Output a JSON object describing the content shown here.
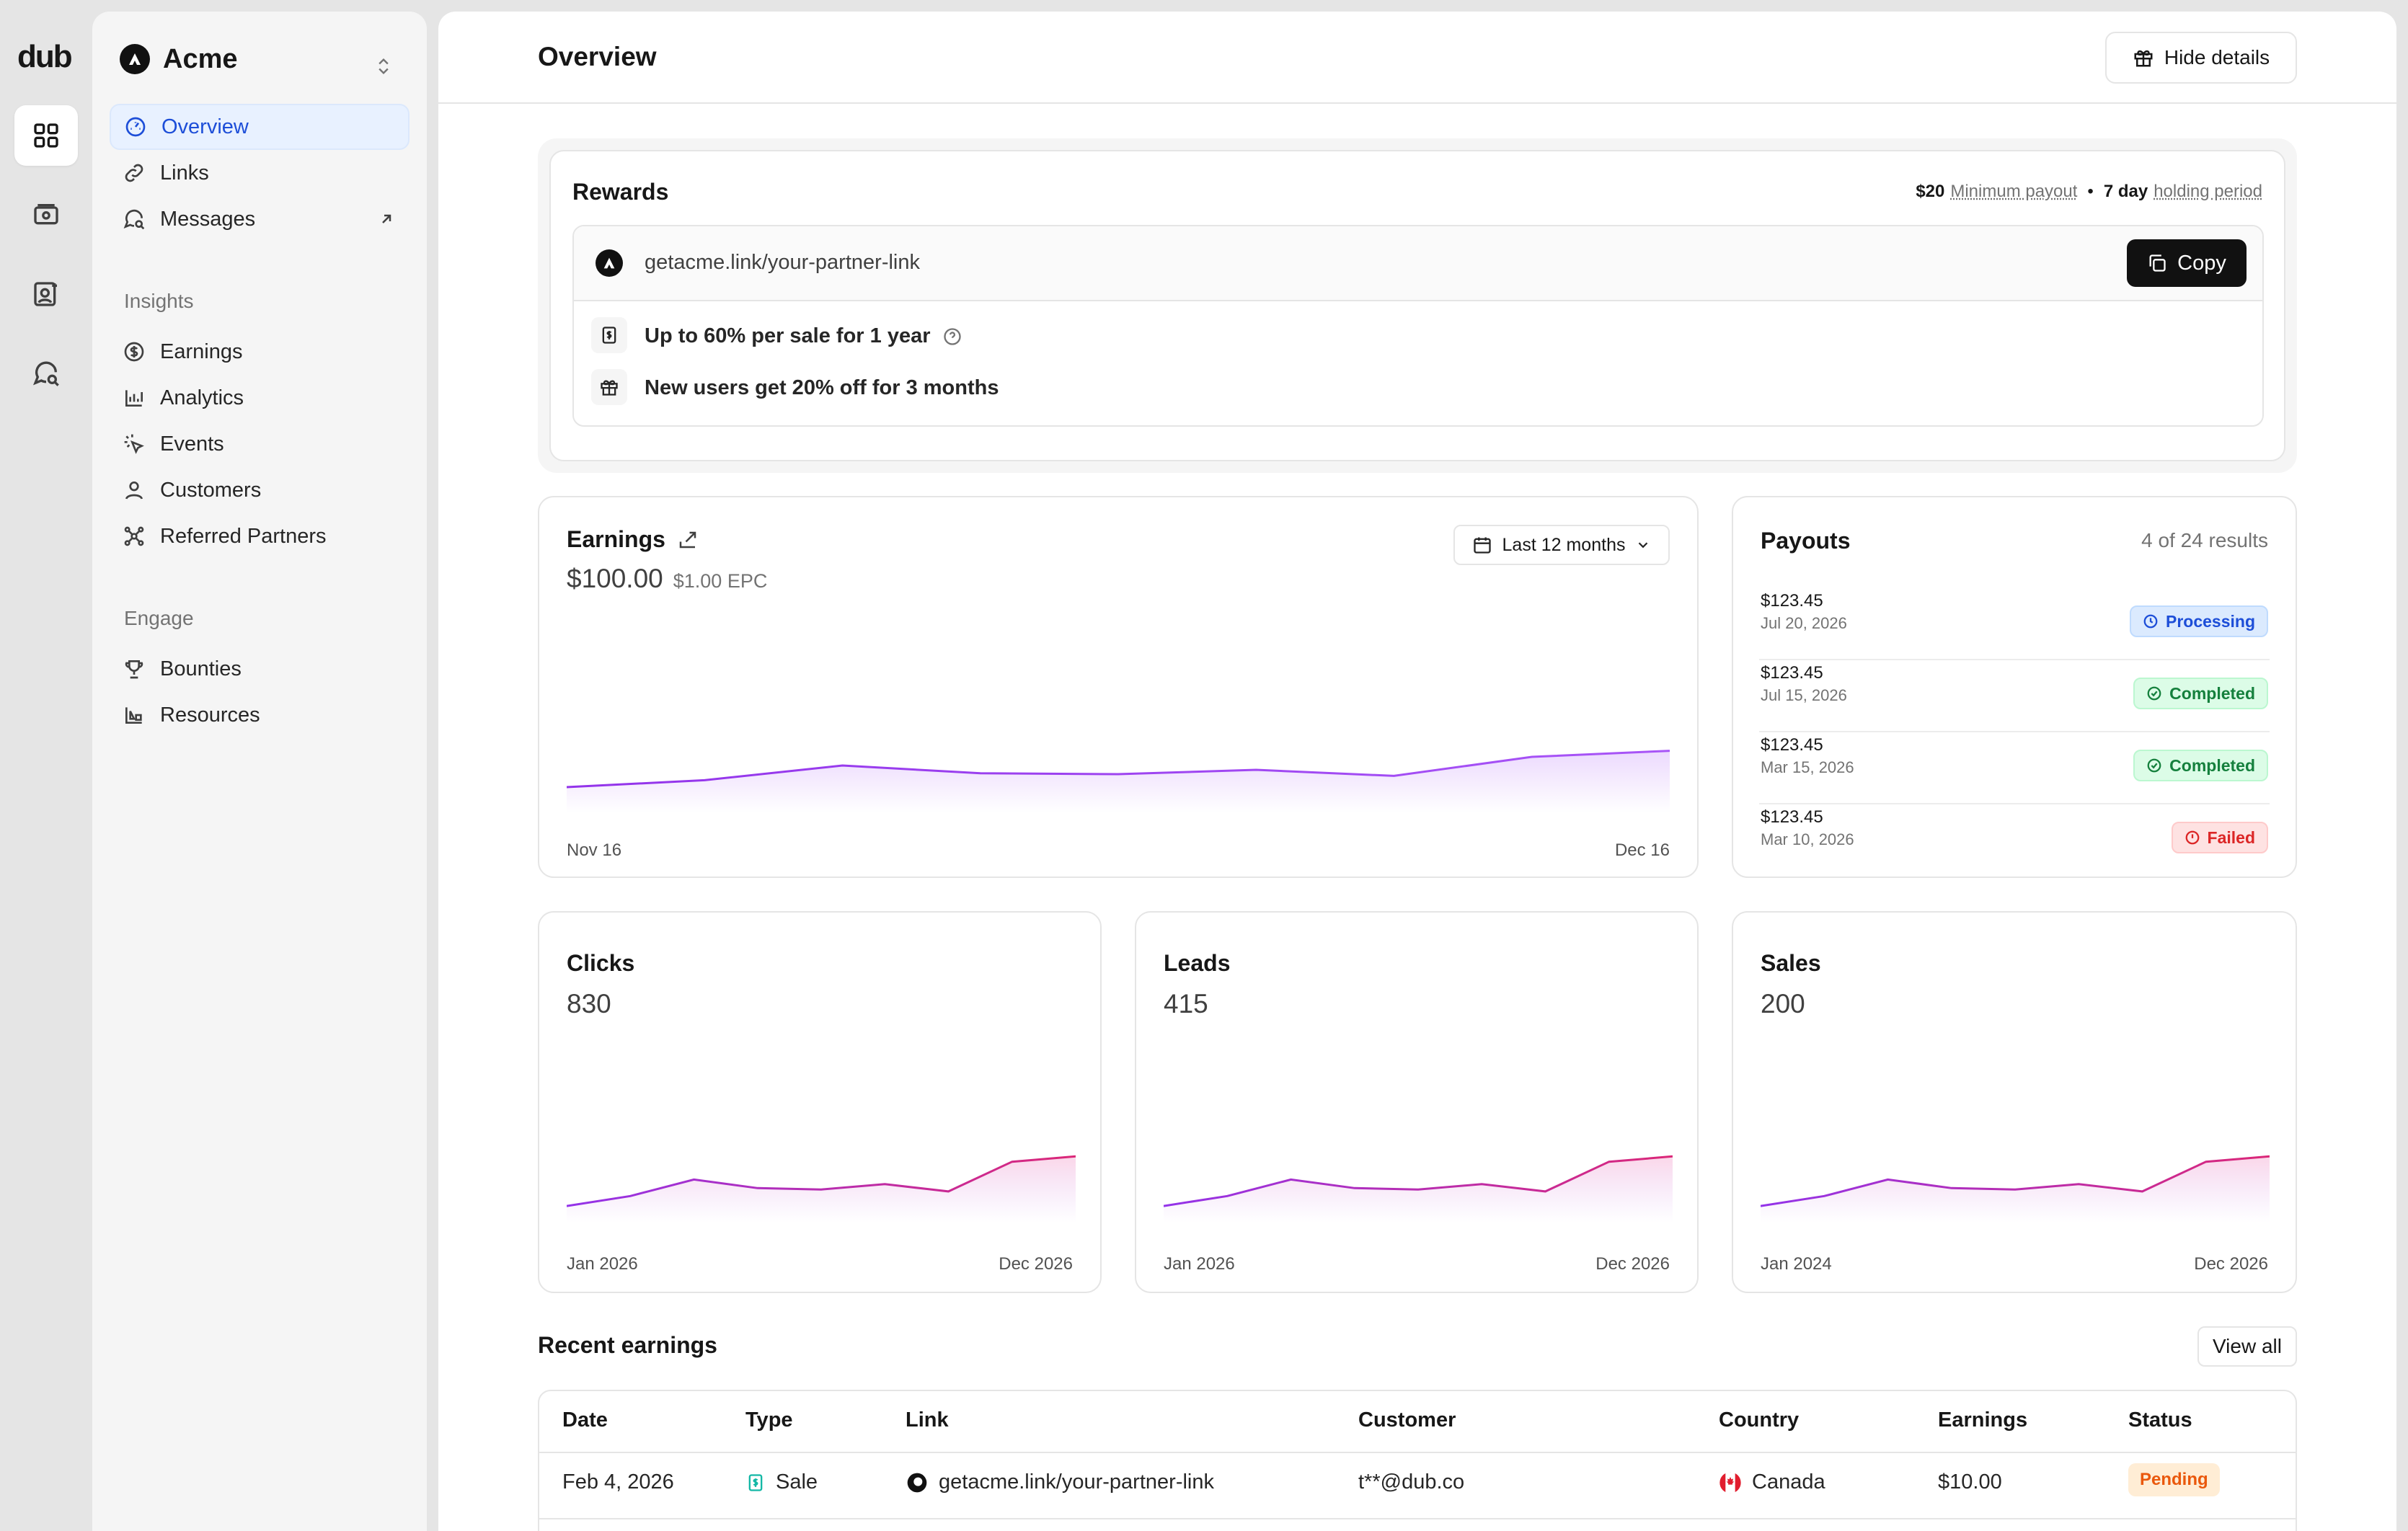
{
  "brand": {
    "name": "dub"
  },
  "workspace": {
    "name": "Acme"
  },
  "nav": {
    "items": [
      {
        "label": "Overview"
      },
      {
        "label": "Links"
      },
      {
        "label": "Messages"
      }
    ],
    "insights_heading": "Insights",
    "insights": [
      {
        "label": "Earnings"
      },
      {
        "label": "Analytics"
      },
      {
        "label": "Events"
      },
      {
        "label": "Customers"
      },
      {
        "label": "Referred Partners"
      }
    ],
    "engage_heading": "Engage",
    "engage": [
      {
        "label": "Bounties"
      },
      {
        "label": "Resources"
      }
    ]
  },
  "header": {
    "title": "Overview",
    "hide_details": "Hide details"
  },
  "rewards": {
    "title": "Rewards",
    "min_amount": "$20",
    "min_label": "Minimum payout",
    "separator": "•",
    "hold_amount": "7 day",
    "hold_label": "holding period",
    "link": "getacme.link/your-partner-link",
    "copy_label": "Copy",
    "reward_1": "Up to 60% per sale for 1 year",
    "reward_2": "New users get 20% off for 3 months"
  },
  "earnings": {
    "title": "Earnings",
    "amount": "$100.00",
    "epc": "$1.00 EPC",
    "range": "Last 12 months",
    "x_start": "Nov 16",
    "x_end": "Dec 16"
  },
  "payouts": {
    "title": "Payouts",
    "count": "4 of 24 results",
    "rows": [
      {
        "amount": "$123.45",
        "date": "Jul 20, 2026",
        "status": "Processing"
      },
      {
        "amount": "$123.45",
        "date": "Jul 15, 2026",
        "status": "Completed"
      },
      {
        "amount": "$123.45",
        "date": "Mar 15, 2026",
        "status": "Completed"
      },
      {
        "amount": "$123.45",
        "date": "Mar 10, 2026",
        "status": "Failed"
      }
    ]
  },
  "stats": [
    {
      "title": "Clicks",
      "value": "830",
      "x_start": "Jan 2026",
      "x_end": "Dec 2026"
    },
    {
      "title": "Leads",
      "value": "415",
      "x_start": "Jan 2026",
      "x_end": "Dec 2026"
    },
    {
      "title": "Sales",
      "value": "200",
      "x_start": "Jan 2024",
      "x_end": "Dec 2026"
    }
  ],
  "recent": {
    "title": "Recent earnings",
    "view_all": "View all",
    "columns": [
      "Date",
      "Type",
      "Link",
      "Customer",
      "Country",
      "Earnings",
      "Status"
    ],
    "rows": [
      {
        "date": "Feb 4, 2026",
        "type": "Sale",
        "link": "getacme.link/your-partner-link",
        "customer": "t**@dub.co",
        "country": "Canada",
        "earnings": "$10.00",
        "status": "Pending"
      }
    ]
  },
  "chart_data": [
    {
      "type": "area",
      "x": [
        "Nov 16",
        "",
        "",
        "",
        "",
        "",
        "",
        "",
        "Dec 16"
      ],
      "series": [
        {
          "values": [
            0.3,
            0.38,
            0.55,
            0.46,
            0.45,
            0.5,
            0.43,
            0.65,
            0.72
          ]
        }
      ],
      "ylim": [
        0,
        1
      ],
      "grid": false
    },
    {
      "type": "area",
      "x": [
        "Jan 2026",
        "",
        "",
        "",
        "",
        "",
        "",
        "",
        "Dec 2026"
      ],
      "series": [
        {
          "values": [
            0.25,
            0.4,
            0.65,
            0.52,
            0.5,
            0.58,
            0.47,
            0.92,
            1.0
          ]
        }
      ],
      "ylim": [
        0,
        1.2
      ],
      "grid": false
    },
    {
      "type": "area",
      "x": [
        "Jan 2026",
        "",
        "",
        "",
        "",
        "",
        "",
        "",
        "Dec 2026"
      ],
      "series": [
        {
          "values": [
            0.25,
            0.4,
            0.65,
            0.52,
            0.5,
            0.58,
            0.47,
            0.92,
            1.0
          ]
        }
      ],
      "ylim": [
        0,
        1.2
      ],
      "grid": false
    },
    {
      "type": "area",
      "x": [
        "Jan 2024",
        "",
        "",
        "",
        "",
        "",
        "",
        "",
        "Dec 2026"
      ],
      "series": [
        {
          "values": [
            0.25,
            0.4,
            0.65,
            0.52,
            0.5,
            0.58,
            0.47,
            0.92,
            1.0
          ]
        }
      ],
      "ylim": [
        0,
        1.2
      ],
      "grid": false
    }
  ],
  "colors": {
    "accent": "#a855f7",
    "pink": "#db2777",
    "blue": "#2563eb",
    "green": "#15803d",
    "red": "#dc2626",
    "orange": "#ea580c"
  }
}
